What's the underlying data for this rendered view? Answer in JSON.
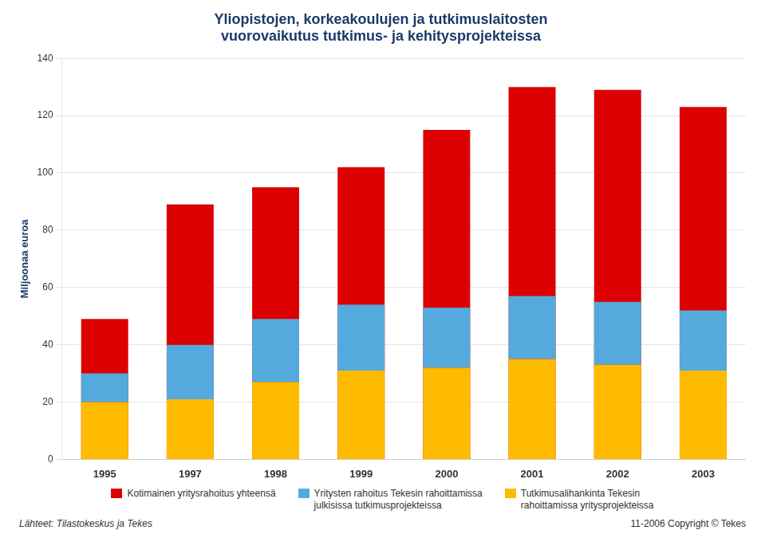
{
  "chart_data": {
    "type": "bar",
    "title": "Yliopistojen, korkeakoulujen ja tutkimuslaitosten\nvuorovaikutus tutkimus- ja kehitysprojekteissa",
    "ylabel": "Miljoonaa euroa",
    "categories": [
      "1995",
      "1997",
      "1998",
      "1999",
      "2000",
      "2001",
      "2002",
      "2003"
    ],
    "series": [
      {
        "name": "Kotimainen yritysrahoitus yhteensä",
        "color": "#DD0000",
        "type": "bar",
        "values": [
          49,
          89,
          95,
          102,
          115,
          130,
          129,
          123
        ]
      },
      {
        "name": "Yritysten rahoitus Tekesin rahoittamissa\njulkisissa tutkimusprojekteissa",
        "color": "#55AADD",
        "type": "stacked_bar",
        "values": [
          10,
          19,
          22,
          23,
          21,
          22,
          22,
          21
        ]
      },
      {
        "name": "Tutkimusalihankinta Tekesin\nrahoittamissa yritysprojekteissa",
        "color": "#FFBB00",
        "type": "stacked_bar",
        "values": [
          20,
          21,
          27,
          31,
          32,
          35,
          33,
          31
        ]
      }
    ],
    "ylim": [
      0,
      140
    ],
    "yticks": [
      0,
      20,
      40,
      60,
      80,
      100,
      120,
      140
    ],
    "grid": true,
    "legend": "bottom",
    "annotations": [
      "Lähteet: Tilastokeskus ja Tekes",
      "11-2006 Copyright © Tekes"
    ]
  }
}
